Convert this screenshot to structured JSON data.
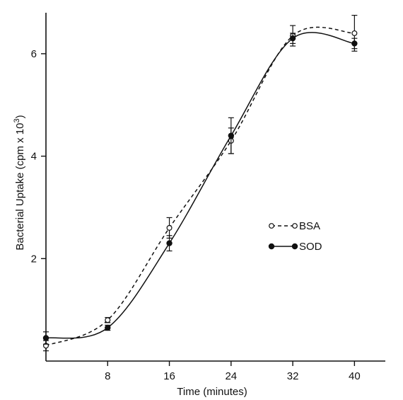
{
  "chart_data": {
    "type": "line",
    "title": "",
    "xlabel": "Time (minutes)",
    "ylabel_main": "Bacterial Uptake (cpm x 10",
    "ylabel_exponent": "3",
    "ylabel_suffix": ")",
    "xlim": [
      0,
      44
    ],
    "ylim": [
      0,
      6.8
    ],
    "x_ticks": [
      8,
      16,
      24,
      32,
      40
    ],
    "y_ticks": [
      2,
      4,
      6
    ],
    "grid": false,
    "legend_position": "center-right",
    "series": [
      {
        "name": "BSA",
        "marker": "open-circle",
        "line_style": "dashed",
        "points": [
          {
            "x": 0,
            "y": 0.3,
            "err": 0.1
          },
          {
            "x": 8,
            "y": 0.8,
            "err": 0.05
          },
          {
            "x": 16,
            "y": 2.6,
            "err": 0.2
          },
          {
            "x": 24,
            "y": 4.3,
            "err": 0.25
          },
          {
            "x": 32,
            "y": 6.35,
            "err": 0.2
          },
          {
            "x": 40,
            "y": 6.4,
            "err": 0.35
          }
        ]
      },
      {
        "name": "SOD",
        "marker": "filled-circle",
        "line_style": "solid",
        "points": [
          {
            "x": 0,
            "y": 0.45,
            "err": 0.12
          },
          {
            "x": 8,
            "y": 0.65,
            "err": 0.05
          },
          {
            "x": 16,
            "y": 2.3,
            "err": 0.15
          },
          {
            "x": 24,
            "y": 4.4,
            "err": 0.35
          },
          {
            "x": 32,
            "y": 6.3,
            "err": 0.1
          },
          {
            "x": 40,
            "y": 6.2,
            "err": 0.1
          }
        ]
      }
    ]
  }
}
